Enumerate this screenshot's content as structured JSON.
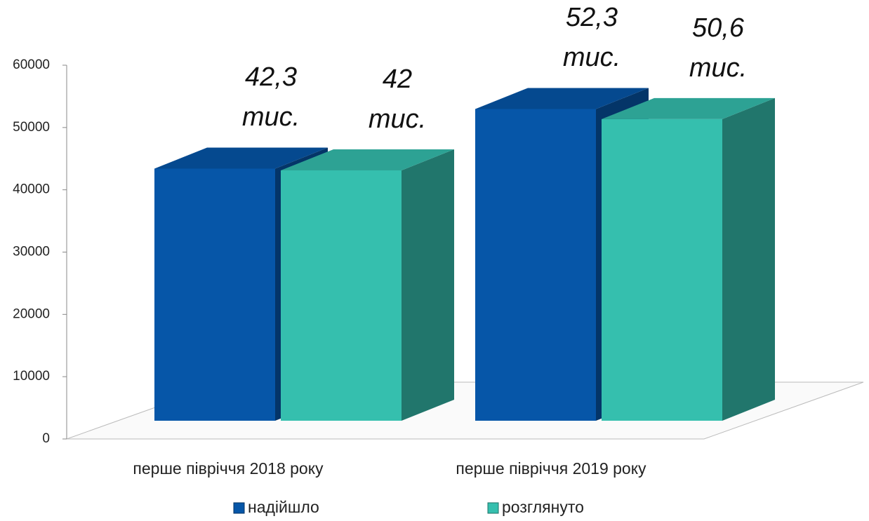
{
  "chart_data": {
    "type": "bar3d",
    "categories": [
      "перше півріччя 2018 року",
      "перше півріччя 2019 року"
    ],
    "series": [
      {
        "name": "надійшло",
        "color": "#0656a8",
        "values": [
          42300,
          52300
        ],
        "value_labels": [
          "42,3 тис.",
          "52,3 тис."
        ]
      },
      {
        "name": "розглянуто",
        "color": "#35bfae",
        "values": [
          42000,
          50600
        ],
        "value_labels": [
          "42 тис.",
          "50,6 тис."
        ]
      }
    ],
    "ylim": [
      0,
      60000
    ],
    "yticks": [
      0,
      10000,
      20000,
      30000,
      40000,
      50000,
      60000
    ],
    "legend": "bottom"
  }
}
